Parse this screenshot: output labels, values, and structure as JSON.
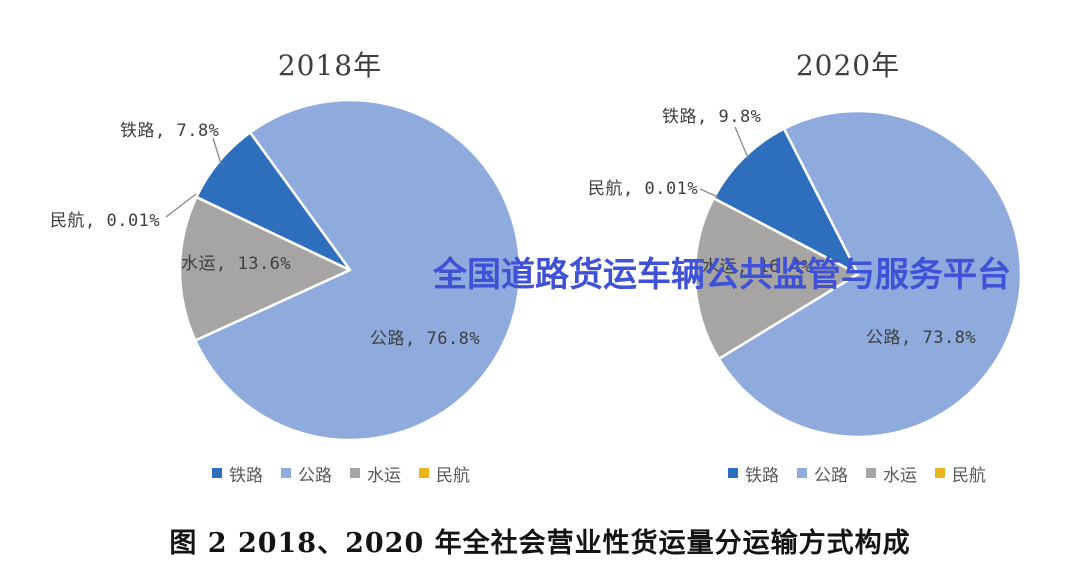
{
  "watermark": {
    "text": "全国道路货运车辆公共监管与服务平台",
    "color": "#3f51d6"
  },
  "caption": {
    "text": "图 2 2018、2020 年全社会营业性货运量分运输方式构成"
  },
  "colors": {
    "铁路": "#2e6fbd",
    "公路": "#8faadc",
    "水运": "#a7a5a3",
    "民航": "#eab41c"
  },
  "chart_data": [
    {
      "type": "pie",
      "title": "2018年",
      "start_angle_deg": 324,
      "slices": [
        {
          "name": "公路",
          "pct": 76.8,
          "label": "公路, 76.8%"
        },
        {
          "name": "水运",
          "pct": 13.6,
          "label": "水运, 13.6%"
        },
        {
          "name": "民航",
          "pct": 0.01,
          "label": "民航, 0.01%"
        },
        {
          "name": "铁路",
          "pct": 7.8,
          "label": "铁路, 7.8%"
        }
      ],
      "legend": [
        {
          "label": "铁路",
          "color": "#2e6fbd"
        },
        {
          "label": "公路",
          "color": "#8faadc"
        },
        {
          "label": "水运",
          "color": "#a7a5a3"
        },
        {
          "label": "民航",
          "color": "#eab41c"
        }
      ],
      "legend_position": "bottom"
    },
    {
      "type": "pie",
      "title": "2020年",
      "start_angle_deg": 333,
      "slices": [
        {
          "name": "公路",
          "pct": 73.8,
          "label": "公路, 73.8%"
        },
        {
          "name": "水运",
          "pct": 16.4,
          "label": "水运, 16.4%"
        },
        {
          "name": "民航",
          "pct": 0.01,
          "label": "民航, 0.01%"
        },
        {
          "name": "铁路",
          "pct": 9.8,
          "label": "铁路, 9.8%"
        }
      ],
      "legend": [
        {
          "label": "铁路",
          "color": "#2e6fbd"
        },
        {
          "label": "公路",
          "color": "#8faadc"
        },
        {
          "label": "水运",
          "color": "#a7a5a3"
        },
        {
          "label": "民航",
          "color": "#eab41c"
        }
      ],
      "legend_position": "bottom"
    }
  ]
}
